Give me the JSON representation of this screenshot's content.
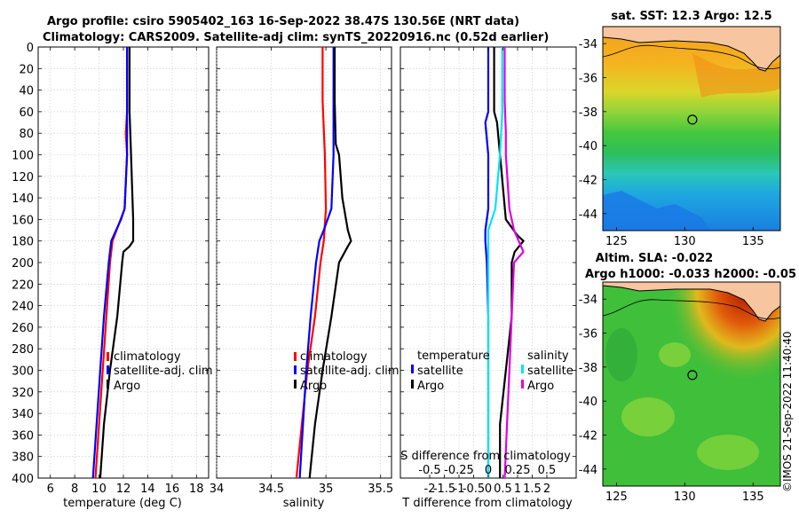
{
  "header": {
    "title_line1": "Argo profile: csiro 5905402_163 16-Sep-2022 38.47S 130.56E (NRT data)",
    "title_line2": "Climatology: CARS2009. Satellite-adj clim: synTS_20220916.nc (0.52d earlier)"
  },
  "map_sst": {
    "title": "sat. SST: 12.3 Argo: 12.5"
  },
  "map_sla": {
    "title1": "Altim. SLA: -0.022",
    "title2": "Argo h1000: -0.033 h2000: -0.05"
  },
  "stamp": "©IMOS 21-Sep-2022 11:40:40",
  "colors": {
    "climatology": "#ff0000",
    "satellite": "#0000ff",
    "argo": "#000000",
    "sat_salinity": "#00e5ee",
    "argo_salinity": "#e000e0"
  },
  "chart_data": [
    {
      "type": "line",
      "title": "",
      "xlabel": "temperature (deg C)",
      "ylabel": "",
      "xlim": [
        5,
        19
      ],
      "ylim": [
        400,
        0
      ],
      "xticks": [
        "6",
        "8",
        "10",
        "12",
        "14",
        "16",
        "18"
      ],
      "yticks": [
        "0",
        "20",
        "40",
        "60",
        "80",
        "100",
        "120",
        "140",
        "160",
        "180",
        "200",
        "220",
        "240",
        "260",
        "280",
        "300",
        "320",
        "340",
        "360",
        "380",
        "400"
      ],
      "legend": [
        "climatology",
        "satellite-adj. clim",
        "Argo"
      ],
      "series": [
        {
          "name": "climatology",
          "depth": [
            0,
            60,
            80,
            100,
            150,
            180,
            200,
            250,
            300,
            350,
            400
          ],
          "values": [
            12.3,
            12.3,
            12.2,
            12.3,
            12.1,
            11.1,
            10.9,
            10.6,
            10.3,
            10.0,
            9.7
          ]
        },
        {
          "name": "satellite-adj. clim",
          "depth": [
            0,
            60,
            100,
            150,
            160,
            180,
            200,
            250,
            300,
            350,
            400
          ],
          "values": [
            12.3,
            12.3,
            12.3,
            12.1,
            11.8,
            11.0,
            10.8,
            10.4,
            10.1,
            9.8,
            9.5
          ]
        },
        {
          "name": "Argo",
          "depth": [
            0,
            60,
            90,
            160,
            180,
            185,
            190,
            200,
            250,
            300,
            350,
            400
          ],
          "values": [
            12.5,
            12.5,
            12.6,
            12.8,
            12.8,
            12.5,
            12.0,
            11.9,
            11.5,
            10.9,
            10.4,
            10.1
          ]
        }
      ]
    },
    {
      "type": "line",
      "title": "",
      "xlabel": "salinity",
      "ylabel": "",
      "xlim": [
        34,
        35.6
      ],
      "ylim": [
        400,
        0
      ],
      "xticks": [
        "34",
        "34.5",
        "35",
        "35.5"
      ],
      "legend": [
        "climatology",
        "satellite-adj. clim",
        "Argo"
      ],
      "series": [
        {
          "name": "climatology",
          "depth": [
            0,
            50,
            100,
            150,
            180,
            200,
            250,
            300,
            350,
            400
          ],
          "values": [
            34.97,
            34.97,
            34.99,
            35.0,
            34.98,
            34.95,
            34.9,
            34.83,
            34.78,
            34.73
          ]
        },
        {
          "name": "satellite-adj. clim",
          "depth": [
            0,
            50,
            100,
            150,
            170,
            180,
            200,
            250,
            300,
            350,
            400
          ],
          "values": [
            35.07,
            35.07,
            35.07,
            35.05,
            34.98,
            34.94,
            34.91,
            34.86,
            34.82,
            34.79,
            34.76
          ]
        },
        {
          "name": "Argo",
          "depth": [
            0,
            50,
            90,
            100,
            140,
            170,
            180,
            185,
            200,
            250,
            300,
            350,
            400
          ],
          "values": [
            35.08,
            35.08,
            35.09,
            35.12,
            35.15,
            35.2,
            35.23,
            35.2,
            35.12,
            35.05,
            34.97,
            34.9,
            34.85
          ]
        }
      ]
    },
    {
      "type": "line",
      "title": "",
      "xlabel": "T difference from climatology",
      "ylabel": "",
      "top_label": "S difference from climatology",
      "xlim": [
        -3,
        3
      ],
      "ylim": [
        400,
        0
      ],
      "xticks": [
        "-2",
        "-1.5",
        "-1",
        "-0.5",
        "0",
        "0.5",
        "1",
        "1.5",
        "2"
      ],
      "s_ticks": [
        "-0.5",
        "-0.25",
        "0",
        "0.25",
        "0.5"
      ],
      "legend_temperature": {
        "heading": "temperature",
        "items": [
          "satellite",
          "Argo"
        ]
      },
      "legend_salinity": {
        "heading": "salinity",
        "items": [
          "satellite",
          "Argo"
        ]
      },
      "series": [
        {
          "name": "temperature satellite",
          "depth": [
            0,
            60,
            70,
            100,
            150,
            170,
            180,
            200,
            250,
            300,
            350,
            400
          ],
          "values": [
            0.0,
            0.0,
            -0.1,
            0.0,
            0.0,
            -0.1,
            -0.1,
            -0.05,
            0.0,
            0.0,
            0.0,
            0.0
          ]
        },
        {
          "name": "temperature Argo",
          "depth": [
            0,
            60,
            70,
            100,
            130,
            160,
            175,
            180,
            190,
            200,
            250,
            300,
            350,
            400
          ],
          "values": [
            0.2,
            0.2,
            0.3,
            0.4,
            0.5,
            0.6,
            1.0,
            1.2,
            0.9,
            0.8,
            0.8,
            0.6,
            0.4,
            0.4
          ]
        },
        {
          "name": "salinity satellite",
          "depth": [
            0,
            60,
            100,
            150,
            170,
            180,
            200,
            250,
            300,
            350,
            400
          ],
          "values": [
            0.12,
            0.12,
            0.1,
            0.06,
            0.0,
            0.0,
            0.0,
            0.0,
            0.0,
            0.0,
            0.0
          ]
        },
        {
          "name": "salinity Argo",
          "depth": [
            0,
            50,
            80,
            100,
            150,
            170,
            180,
            190,
            200,
            250,
            300,
            350,
            400
          ],
          "values": [
            0.14,
            0.14,
            0.15,
            0.15,
            0.18,
            0.22,
            0.26,
            0.3,
            0.22,
            0.2,
            0.18,
            0.16,
            0.14
          ]
        }
      ]
    },
    {
      "type": "heatmap",
      "title": "sat. SST: 12.3 Argo: 12.5",
      "xlim": [
        124,
        137
      ],
      "ylim": [
        -45,
        -33
      ],
      "xticks": [
        "125",
        "130",
        "135"
      ],
      "yticks": [
        "-34",
        "-36",
        "-38",
        "-40",
        "-42",
        "-44"
      ],
      "argo_position": {
        "lon": 130.56,
        "lat": -38.47
      }
    },
    {
      "type": "heatmap",
      "title": "Altim. SLA: -0.022",
      "xlim": [
        124,
        137
      ],
      "ylim": [
        -45,
        -33
      ],
      "xticks": [
        "125",
        "130",
        "135"
      ],
      "yticks": [
        "-34",
        "-36",
        "-38",
        "-40",
        "-42",
        "-44"
      ],
      "argo_position": {
        "lon": 130.56,
        "lat": -38.47
      }
    }
  ]
}
